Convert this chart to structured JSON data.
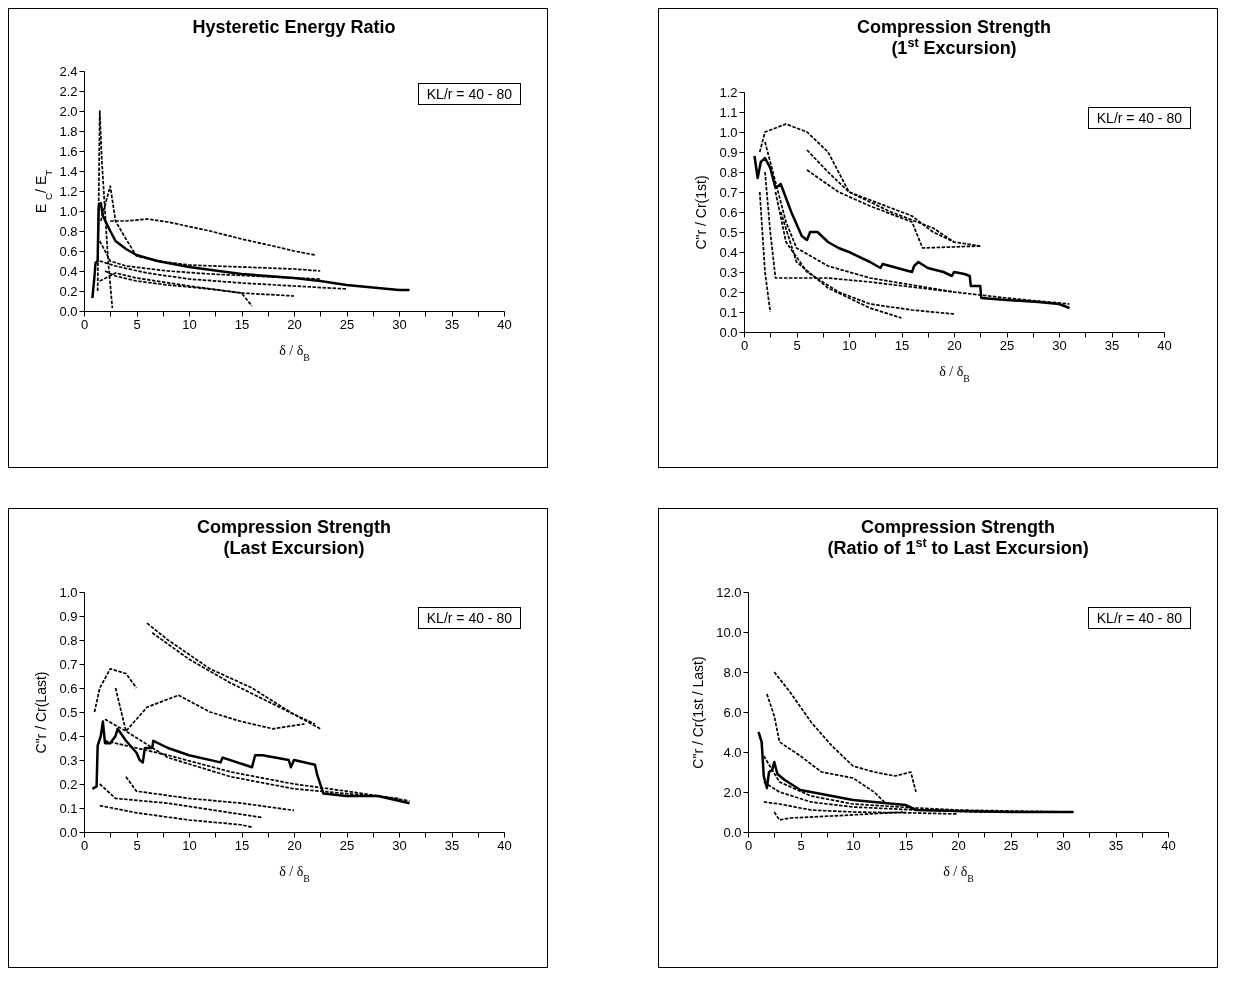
{
  "chart_data": [
    {
      "type": "line",
      "title": "Hysteretic Energy Ratio",
      "xlabel": "δ / δ$_{B}$",
      "ylabel": "E $_{C}$/ E$_{T}$",
      "annotations": [
        "KL/r = 40 - 80"
      ],
      "xlim": [
        0,
        40
      ],
      "xticks": [
        0,
        {
          "value": 2.5,
          "label": null
        },
        5,
        {
          "value": 7.5,
          "label": null
        },
        10,
        {
          "value": 12.5,
          "label": null
        },
        15,
        {
          "value": 17.5,
          "label": null
        },
        20,
        {
          "value": 22.5,
          "label": null
        },
        25,
        {
          "value": 27.5,
          "label": null
        },
        30,
        {
          "value": 32.5,
          "label": null
        },
        35,
        {
          "value": 37.5,
          "label": null
        },
        40
      ],
      "ylim": [
        0,
        2.4
      ],
      "yticks": [
        {
          "value": 0,
          "label": "0.0"
        },
        {
          "value": 0.2,
          "label": "0.2"
        },
        {
          "value": 0.4,
          "label": "0.4"
        },
        {
          "value": 0.6,
          "label": "0.6"
        },
        {
          "value": 0.8,
          "label": "0.8"
        },
        {
          "value": 1,
          "label": "1.0"
        },
        {
          "value": 1.2,
          "label": "1.2"
        },
        {
          "value": 1.4,
          "label": "1.4"
        },
        {
          "value": 1.6,
          "label": "1.6"
        },
        {
          "value": 1.8,
          "label": "1.8"
        },
        {
          "value": 2,
          "label": "2.0"
        },
        {
          "value": 2.2,
          "label": "2.2"
        },
        {
          "value": 2.4,
          "label": "2.4"
        }
      ],
      "series": [
        {
          "color": "#000000",
          "line_style": "dashed",
          "x": [
            1.3,
            1.5,
            1.7,
            2.0,
            2.3,
            2.7
          ],
          "values": [
            0.2,
            2.0,
            1.5,
            1.0,
            0.5,
            0.03
          ]
        },
        {
          "color": "#000000",
          "line_style": "dashed",
          "x": [
            1.6,
            2.5,
            3,
            4,
            5,
            7,
            10,
            15,
            20,
            22.5
          ],
          "values": [
            0.9,
            1.25,
            0.9,
            0.72,
            0.55,
            0.5,
            0.46,
            0.44,
            0.42,
            0.4
          ]
        },
        {
          "color": "#000000",
          "line_style": "dashed",
          "x": [
            2.5,
            4,
            6,
            8,
            12,
            15,
            18,
            20,
            22
          ],
          "values": [
            0.9,
            0.9,
            0.92,
            0.89,
            0.8,
            0.72,
            0.65,
            0.6,
            0.56
          ]
        },
        {
          "color": "#000000",
          "line_style": "dashed",
          "x": [
            1.5,
            2.5,
            4,
            8,
            12,
            16,
            20,
            22.5
          ],
          "values": [
            0.7,
            0.5,
            0.45,
            0.4,
            0.37,
            0.35,
            0.33,
            0.32
          ]
        },
        {
          "color": "#000000",
          "line_style": "dashed",
          "x": [
            1.5,
            3,
            6,
            10,
            15,
            20,
            25
          ],
          "values": [
            0.5,
            0.45,
            0.38,
            0.32,
            0.28,
            0.25,
            0.22
          ]
        },
        {
          "color": "#000000",
          "line_style": "dashed",
          "x": [
            2,
            3,
            5,
            8,
            12,
            15,
            16
          ],
          "values": [
            0.4,
            0.35,
            0.3,
            0.26,
            0.22,
            0.18,
            0.05
          ]
        },
        {
          "color": "#000000",
          "line_style": "dashed",
          "x": [
            1.5,
            3,
            5,
            10,
            15,
            20
          ],
          "values": [
            0.3,
            0.38,
            0.33,
            0.25,
            0.18,
            0.15
          ]
        },
        {
          "color": "#000000",
          "line_style": "solid",
          "x": [
            0.8,
            1.0,
            1.1,
            1.3,
            1.4,
            1.6,
            1.8,
            2.5,
            3,
            4,
            5,
            7,
            10,
            15,
            20,
            22.5,
            25,
            28,
            30,
            31
          ],
          "values": [
            0.13,
            0.35,
            0.48,
            0.5,
            1.05,
            1.08,
            0.95,
            0.8,
            0.7,
            0.62,
            0.56,
            0.5,
            0.44,
            0.37,
            0.33,
            0.3,
            0.26,
            0.23,
            0.21,
            0.21
          ]
        }
      ]
    },
    {
      "type": "line",
      "title": "Compression Strength",
      "subtitle": "(1$^{st}$ Excursion)",
      "xlabel": "δ / δ$_{B}$",
      "ylabel": "C\"r / Cr(1st)",
      "annotations": [
        "KL/r = 40 - 80"
      ],
      "xlim": [
        0,
        40
      ],
      "xticks": [
        0,
        {
          "value": 2.5,
          "label": null
        },
        5,
        {
          "value": 7.5,
          "label": null
        },
        10,
        {
          "value": 12.5,
          "label": null
        },
        15,
        {
          "value": 17.5,
          "label": null
        },
        20,
        {
          "value": 22.5,
          "label": null
        },
        25,
        {
          "value": 27.5,
          "label": null
        },
        30,
        {
          "value": 32.5,
          "label": null
        },
        35,
        {
          "value": 37.5,
          "label": null
        },
        40
      ],
      "ylim": [
        0,
        1.2
      ],
      "yticks": [
        {
          "value": 0,
          "label": "0.0"
        },
        {
          "value": 0.1,
          "label": "0.1"
        },
        {
          "value": 0.2,
          "label": "0.2"
        },
        {
          "value": 0.3,
          "label": "0.3"
        },
        {
          "value": 0.4,
          "label": "0.4"
        },
        {
          "value": 0.5,
          "label": "0.5"
        },
        {
          "value": 0.6,
          "label": "0.6"
        },
        {
          "value": 0.7,
          "label": "0.7"
        },
        {
          "value": 0.8,
          "label": "0.8"
        },
        {
          "value": 0.9,
          "label": "0.9"
        },
        {
          "value": 1,
          "label": "1.0"
        },
        {
          "value": 1.1,
          "label": "1.1"
        },
        {
          "value": 1.2,
          "label": "1.2"
        }
      ],
      "series": [
        {
          "color": "#000000",
          "line_style": "dashed",
          "x": [
            1.5,
            2,
            4,
            6,
            8,
            10,
            14,
            18,
            20
          ],
          "values": [
            0.9,
            1.0,
            1.04,
            1.0,
            0.9,
            0.7,
            0.6,
            0.52,
            0.45
          ]
        },
        {
          "color": "#000000",
          "line_style": "dashed",
          "x": [
            6,
            8,
            10,
            13,
            16,
            18,
            20,
            22.5
          ],
          "values": [
            0.91,
            0.8,
            0.7,
            0.64,
            0.58,
            0.5,
            0.45,
            0.43
          ]
        },
        {
          "color": "#000000",
          "line_style": "dashed",
          "x": [
            6,
            9,
            12,
            16,
            17,
            22.5
          ],
          "values": [
            0.81,
            0.7,
            0.63,
            0.55,
            0.42,
            0.43
          ]
        },
        {
          "color": "#000000",
          "line_style": "dashed",
          "x": [
            2,
            3,
            4,
            5,
            8,
            12,
            20,
            25,
            31
          ],
          "values": [
            0.95,
            0.75,
            0.55,
            0.42,
            0.33,
            0.27,
            0.2,
            0.17,
            0.14
          ]
        },
        {
          "color": "#000000",
          "line_style": "dashed",
          "x": [
            2,
            2.5,
            3,
            4,
            8,
            12,
            20
          ],
          "values": [
            0.8,
            0.5,
            0.27,
            0.27,
            0.27,
            0.25,
            0.2
          ]
        },
        {
          "color": "#000000",
          "line_style": "dashed",
          "x": [
            1.5,
            2,
            2.5
          ],
          "values": [
            0.7,
            0.3,
            0.1
          ]
        },
        {
          "color": "#000000",
          "line_style": "dashed",
          "x": [
            3,
            4,
            6,
            9,
            12,
            16,
            20
          ],
          "values": [
            0.7,
            0.45,
            0.3,
            0.2,
            0.14,
            0.11,
            0.09
          ]
        },
        {
          "color": "#000000",
          "line_style": "dashed",
          "x": [
            3.5,
            5,
            8,
            12,
            15
          ],
          "values": [
            0.6,
            0.35,
            0.22,
            0.12,
            0.07
          ]
        },
        {
          "color": "#000000",
          "line_style": "solid",
          "x": [
            1.0,
            1.3,
            1.6,
            2,
            2.5,
            3,
            3.5,
            4.5,
            5.5,
            6,
            6.3,
            7,
            8,
            9,
            10,
            12,
            13,
            13.2,
            16,
            16.2,
            16.6,
            17.5,
            19,
            19.8,
            20,
            21,
            21.5,
            21.6,
            22.5,
            22.6,
            25,
            28,
            30,
            31
          ],
          "values": [
            0.88,
            0.77,
            0.85,
            0.87,
            0.82,
            0.72,
            0.74,
            0.6,
            0.48,
            0.46,
            0.5,
            0.5,
            0.45,
            0.42,
            0.4,
            0.35,
            0.32,
            0.34,
            0.3,
            0.33,
            0.35,
            0.32,
            0.3,
            0.28,
            0.3,
            0.29,
            0.28,
            0.23,
            0.23,
            0.17,
            0.16,
            0.15,
            0.14,
            0.12
          ]
        }
      ]
    },
    {
      "type": "line",
      "title": "Compression Strength",
      "subtitle": "(Last Excursion)",
      "xlabel": "δ / δ$_{B}$",
      "ylabel": "C\"r / Cr(Last)",
      "annotations": [
        "KL/r = 40 - 80"
      ],
      "xlim": [
        0,
        40
      ],
      "xticks": [
        0,
        {
          "value": 2.5,
          "label": null
        },
        5,
        {
          "value": 7.5,
          "label": null
        },
        10,
        {
          "value": 12.5,
          "label": null
        },
        15,
        {
          "value": 17.5,
          "label": null
        },
        20,
        {
          "value": 22.5,
          "label": null
        },
        25,
        {
          "value": 27.5,
          "label": null
        },
        30,
        {
          "value": 32.5,
          "label": null
        },
        35,
        {
          "value": 37.5,
          "label": null
        },
        40
      ],
      "ylim": [
        0,
        1.0
      ],
      "yticks": [
        {
          "value": 0,
          "label": "0.0"
        },
        {
          "value": 0.1,
          "label": "0.1"
        },
        {
          "value": 0.2,
          "label": "0.2"
        },
        {
          "value": 0.3,
          "label": "0.3"
        },
        {
          "value": 0.4,
          "label": "0.4"
        },
        {
          "value": 0.5,
          "label": "0.5"
        },
        {
          "value": 0.6,
          "label": "0.6"
        },
        {
          "value": 0.7,
          "label": "0.7"
        },
        {
          "value": 0.8,
          "label": "0.8"
        },
        {
          "value": 0.9,
          "label": "0.9"
        },
        {
          "value": 1,
          "label": "1.0"
        }
      ],
      "series": [
        {
          "color": "#000000",
          "line_style": "dashed",
          "x": [
            6,
            8,
            12,
            16,
            20,
            22.5
          ],
          "values": [
            0.87,
            0.8,
            0.68,
            0.6,
            0.49,
            0.43
          ]
        },
        {
          "color": "#000000",
          "line_style": "dashed",
          "x": [
            6.5,
            10,
            14,
            20,
            22
          ],
          "values": [
            0.83,
            0.72,
            0.62,
            0.49,
            0.45
          ]
        },
        {
          "color": "#000000",
          "line_style": "dashed",
          "x": [
            1,
            1.5,
            2.5,
            4,
            5
          ],
          "values": [
            0.5,
            0.6,
            0.68,
            0.66,
            0.6
          ]
        },
        {
          "color": "#000000",
          "line_style": "dashed",
          "x": [
            3,
            4,
            6,
            9,
            12,
            15,
            18,
            21
          ],
          "values": [
            0.6,
            0.42,
            0.52,
            0.57,
            0.5,
            0.46,
            0.43,
            0.45
          ]
        },
        {
          "color": "#000000",
          "line_style": "dashed",
          "x": [
            2,
            4,
            8,
            14,
            20,
            25,
            31
          ],
          "values": [
            0.38,
            0.36,
            0.32,
            0.25,
            0.2,
            0.17,
            0.13
          ]
        },
        {
          "color": "#000000",
          "line_style": "dashed",
          "x": [
            2,
            4,
            8,
            14,
            20,
            30
          ],
          "values": [
            0.47,
            0.42,
            0.31,
            0.23,
            0.18,
            0.14
          ]
        },
        {
          "color": "#000000",
          "line_style": "dashed",
          "x": [
            4,
            5,
            10,
            15,
            20
          ],
          "values": [
            0.23,
            0.17,
            0.14,
            0.12,
            0.09
          ]
        },
        {
          "color": "#000000",
          "line_style": "dashed",
          "x": [
            1.5,
            3,
            8,
            14,
            17
          ],
          "values": [
            0.2,
            0.14,
            0.12,
            0.08,
            0.06
          ]
        },
        {
          "color": "#000000",
          "line_style": "dashed",
          "x": [
            1.5,
            5,
            10,
            15,
            16
          ],
          "values": [
            0.11,
            0.08,
            0.05,
            0.03,
            0.02
          ]
        },
        {
          "color": "#000000",
          "line_style": "solid",
          "x": [
            0.8,
            1.2,
            1.3,
            1.6,
            1.8,
            2,
            2.5,
            3,
            3.2,
            4,
            5,
            5.3,
            5.6,
            5.8,
            6.5,
            6.6,
            8,
            10,
            13,
            13.2,
            16,
            16.3,
            17,
            19.5,
            19.7,
            20,
            22,
            22.2,
            22.8,
            25,
            28,
            31
          ],
          "values": [
            0.18,
            0.19,
            0.36,
            0.4,
            0.46,
            0.37,
            0.37,
            0.4,
            0.43,
            0.38,
            0.33,
            0.3,
            0.29,
            0.35,
            0.35,
            0.38,
            0.35,
            0.32,
            0.29,
            0.31,
            0.27,
            0.32,
            0.32,
            0.3,
            0.27,
            0.3,
            0.28,
            0.24,
            0.16,
            0.15,
            0.15,
            0.12
          ]
        }
      ]
    },
    {
      "type": "line",
      "title": "Compression Strength",
      "subtitle": "(Ratio of 1$^{st}$ to Last Excursion)",
      "xlabel": "δ / δ$_{B}$",
      "ylabel": "C\"r / Cr(1st / Last)",
      "annotations": [
        "KL/r = 40 - 80"
      ],
      "xlim": [
        0,
        40
      ],
      "xticks": [
        0,
        {
          "value": 2.5,
          "label": null
        },
        5,
        {
          "value": 7.5,
          "label": null
        },
        10,
        {
          "value": 12.5,
          "label": null
        },
        15,
        {
          "value": 17.5,
          "label": null
        },
        20,
        {
          "value": 22.5,
          "label": null
        },
        25,
        {
          "value": 27.5,
          "label": null
        },
        30,
        {
          "value": 32.5,
          "label": null
        },
        35,
        {
          "value": 37.5,
          "label": null
        },
        40
      ],
      "ylim": [
        0,
        12
      ],
      "yticks": [
        {
          "value": 0,
          "label": "0.0"
        },
        {
          "value": 2,
          "label": "2.0"
        },
        {
          "value": 4,
          "label": "4.0"
        },
        {
          "value": 6,
          "label": "6.0"
        },
        {
          "value": 8,
          "label": "8.0"
        },
        {
          "value": 10,
          "label": "10.0"
        },
        {
          "value": 12,
          "label": "12.0"
        }
      ],
      "series": [
        {
          "color": "#000000",
          "line_style": "dashed",
          "x": [
            2.5,
            4,
            6,
            8,
            10,
            12,
            14,
            15.5,
            16
          ],
          "values": [
            8.0,
            7.0,
            5.5,
            4.3,
            3.3,
            3.0,
            2.8,
            3.0,
            2.0
          ]
        },
        {
          "color": "#000000",
          "line_style": "dashed",
          "x": [
            1.8,
            2.5,
            3,
            5,
            7,
            10,
            12,
            13
          ],
          "values": [
            6.9,
            5.8,
            4.5,
            3.8,
            3.0,
            2.7,
            2.0,
            1.5
          ]
        },
        {
          "color": "#000000",
          "line_style": "dashed",
          "x": [
            1.5,
            3,
            6,
            10,
            16,
            20,
            25,
            31
          ],
          "values": [
            3.8,
            2.5,
            1.8,
            1.4,
            1.2,
            1.1,
            1.05,
            1.0
          ]
        },
        {
          "color": "#000000",
          "line_style": "dashed",
          "x": [
            1.5,
            3,
            6,
            10,
            16,
            22,
            30
          ],
          "values": [
            2.5,
            2.0,
            1.5,
            1.25,
            1.1,
            1.0,
            1.0
          ]
        },
        {
          "color": "#000000",
          "line_style": "dashed",
          "x": [
            1.5,
            3,
            6,
            10,
            16,
            20
          ],
          "values": [
            1.5,
            1.4,
            1.1,
            1.0,
            0.95,
            0.9
          ]
        },
        {
          "color": "#000000",
          "line_style": "dashed",
          "x": [
            2.5,
            3,
            4,
            8,
            15
          ],
          "values": [
            1.0,
            0.6,
            0.7,
            0.8,
            1.0
          ]
        },
        {
          "color": "#000000",
          "line_style": "solid",
          "x": [
            1.0,
            1.3,
            1.5,
            1.8,
            2.0,
            2.3,
            2.5,
            2.8,
            3.5,
            5,
            7,
            10,
            15,
            16,
            20,
            25,
            31
          ],
          "values": [
            5.0,
            4.5,
            2.8,
            2.2,
            3.0,
            3.1,
            3.5,
            2.9,
            2.6,
            2.1,
            1.9,
            1.6,
            1.35,
            1.1,
            1.05,
            1.0,
            1.0
          ]
        }
      ]
    }
  ]
}
